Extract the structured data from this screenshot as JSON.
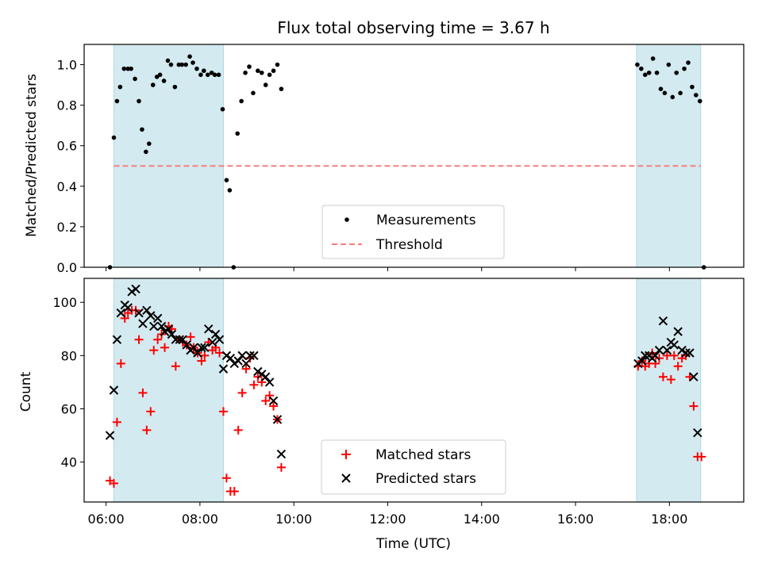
{
  "chart_data": [
    {
      "type": "scatter",
      "title": "Flux total observing time = 3.67 h",
      "xlabel": "",
      "ylabel": "Matched/Predicted stars",
      "xlim": [
        "05:32",
        "19:35"
      ],
      "ylim": [
        0,
        1.1
      ],
      "yticks": [
        "0.0",
        "0.2",
        "0.4",
        "0.6",
        "0.8",
        "1.0"
      ],
      "shaded_intervals": [
        [
          "06:10",
          "08:30"
        ],
        [
          "17:18",
          "18:40"
        ]
      ],
      "threshold": {
        "name": "Threshold",
        "value": 0.5,
        "x": [
          "06:10",
          "18:40"
        ],
        "color": "#f77f7f",
        "style": "dashed"
      },
      "series": [
        {
          "name": "Measurements",
          "color": "#000000",
          "marker": "dot",
          "points": [
            [
              "06:05",
              0.0
            ],
            [
              "06:10",
              0.64
            ],
            [
              "06:14",
              0.82
            ],
            [
              "06:18",
              0.89
            ],
            [
              "06:23",
              0.98
            ],
            [
              "06:28",
              0.98
            ],
            [
              "06:32",
              0.98
            ],
            [
              "06:37",
              0.93
            ],
            [
              "06:42",
              0.82
            ],
            [
              "06:46",
              0.68
            ],
            [
              "06:51",
              0.57
            ],
            [
              "06:55",
              0.61
            ],
            [
              "07:00",
              0.9
            ],
            [
              "07:05",
              0.94
            ],
            [
              "07:09",
              0.95
            ],
            [
              "07:14",
              0.92
            ],
            [
              "07:19",
              1.02
            ],
            [
              "07:23",
              1.0
            ],
            [
              "07:28",
              0.89
            ],
            [
              "07:33",
              1.0
            ],
            [
              "07:37",
              1.0
            ],
            [
              "07:42",
              1.0
            ],
            [
              "07:47",
              1.04
            ],
            [
              "07:51",
              1.01
            ],
            [
              "07:56",
              0.98
            ],
            [
              "08:01",
              0.95
            ],
            [
              "08:05",
              0.97
            ],
            [
              "08:10",
              0.95
            ],
            [
              "08:15",
              0.96
            ],
            [
              "08:19",
              0.95
            ],
            [
              "08:24",
              0.95
            ],
            [
              "08:29",
              0.78
            ],
            [
              "08:34",
              0.43
            ],
            [
              "08:38",
              0.38
            ],
            [
              "08:43",
              0.0
            ],
            [
              "08:48",
              0.66
            ],
            [
              "08:53",
              0.82
            ],
            [
              "08:58",
              0.96
            ],
            [
              "09:03",
              0.99
            ],
            [
              "09:08",
              0.86
            ],
            [
              "09:14",
              0.97
            ],
            [
              "09:19",
              0.96
            ],
            [
              "09:24",
              0.9
            ],
            [
              "09:29",
              0.95
            ],
            [
              "09:34",
              0.97
            ],
            [
              "09:39",
              1.0
            ],
            [
              "09:44",
              0.88
            ],
            [
              "17:19",
              1.0
            ],
            [
              "17:24",
              0.98
            ],
            [
              "17:29",
              0.95
            ],
            [
              "17:34",
              0.96
            ],
            [
              "17:39",
              1.03
            ],
            [
              "17:44",
              0.96
            ],
            [
              "17:49",
              0.88
            ],
            [
              "17:54",
              0.86
            ],
            [
              "17:59",
              1.0
            ],
            [
              "18:04",
              0.84
            ],
            [
              "18:09",
              0.96
            ],
            [
              "18:14",
              0.86
            ],
            [
              "18:19",
              0.98
            ],
            [
              "18:24",
              1.01
            ],
            [
              "18:29",
              0.89
            ],
            [
              "18:34",
              0.85
            ],
            [
              "18:39",
              0.82
            ],
            [
              "18:44",
              0.0
            ]
          ]
        }
      ],
      "legend": {
        "placement": "bottom-center"
      }
    },
    {
      "type": "scatter",
      "xlabel": "Time (UTC)",
      "ylabel": "Count",
      "xlim": [
        "05:32",
        "19:35"
      ],
      "ylim": [
        25,
        109
      ],
      "xticks": [
        "06:00",
        "08:00",
        "10:00",
        "12:00",
        "14:00",
        "16:00",
        "18:00"
      ],
      "yticks": [
        "40",
        "60",
        "80",
        "100"
      ],
      "shaded_intervals": [
        [
          "06:10",
          "08:30"
        ],
        [
          "17:18",
          "18:40"
        ]
      ],
      "series": [
        {
          "name": "Matched stars",
          "color": "#ff0000",
          "marker": "plus",
          "points": [
            [
              "06:05",
              33
            ],
            [
              "06:10",
              32
            ],
            [
              "06:14",
              55
            ],
            [
              "06:19",
              77
            ],
            [
              "06:24",
              94
            ],
            [
              "06:28",
              96
            ],
            [
              "06:33",
              97
            ],
            [
              "06:38",
              97
            ],
            [
              "06:42",
              86
            ],
            [
              "06:47",
              66
            ],
            [
              "06:52",
              52
            ],
            [
              "06:57",
              59
            ],
            [
              "07:01",
              82
            ],
            [
              "07:06",
              86
            ],
            [
              "07:11",
              88
            ],
            [
              "07:15",
              83
            ],
            [
              "07:20",
              91
            ],
            [
              "07:24",
              90
            ],
            [
              "07:29",
              76
            ],
            [
              "07:34",
              86
            ],
            [
              "07:38",
              85
            ],
            [
              "07:43",
              84
            ],
            [
              "07:48",
              87
            ],
            [
              "07:52",
              83
            ],
            [
              "07:57",
              81
            ],
            [
              "08:02",
              78
            ],
            [
              "08:06",
              80
            ],
            [
              "08:11",
              85
            ],
            [
              "08:16",
              82
            ],
            [
              "08:20",
              83
            ],
            [
              "08:25",
              81
            ],
            [
              "08:30",
              59
            ],
            [
              "08:34",
              34
            ],
            [
              "08:39",
              29
            ],
            [
              "08:44",
              29
            ],
            [
              "08:49",
              52
            ],
            [
              "08:54",
              66
            ],
            [
              "08:59",
              75
            ],
            [
              "09:04",
              79
            ],
            [
              "09:09",
              69
            ],
            [
              "09:14",
              72
            ],
            [
              "09:19",
              70
            ],
            [
              "09:24",
              63
            ],
            [
              "09:29",
              65
            ],
            [
              "09:34",
              61
            ],
            [
              "09:39",
              56
            ],
            [
              "09:44",
              38
            ],
            [
              "17:20",
              76
            ],
            [
              "17:25",
              78
            ],
            [
              "17:29",
              76
            ],
            [
              "17:34",
              77
            ],
            [
              "17:38",
              81
            ],
            [
              "17:42",
              77
            ],
            [
              "17:47",
              79
            ],
            [
              "17:52",
              72
            ],
            [
              "17:57",
              80
            ],
            [
              "18:02",
              71
            ],
            [
              "18:06",
              80
            ],
            [
              "18:11",
              76
            ],
            [
              "18:16",
              79
            ],
            [
              "18:21",
              80
            ],
            [
              "18:26",
              72
            ],
            [
              "18:31",
              61
            ],
            [
              "18:36",
              42
            ],
            [
              "18:41",
              42
            ]
          ]
        },
        {
          "name": "Predicted stars",
          "color": "#000000",
          "marker": "x",
          "points": [
            [
              "06:05",
              50
            ],
            [
              "06:10",
              67
            ],
            [
              "06:14",
              86
            ],
            [
              "06:19",
              96
            ],
            [
              "06:24",
              99
            ],
            [
              "06:28",
              98
            ],
            [
              "06:33",
              104
            ],
            [
              "06:38",
              105
            ],
            [
              "06:42",
              96
            ],
            [
              "06:47",
              92
            ],
            [
              "06:52",
              97
            ],
            [
              "06:57",
              95
            ],
            [
              "07:01",
              91
            ],
            [
              "07:06",
              94
            ],
            [
              "07:11",
              91
            ],
            [
              "07:15",
              89
            ],
            [
              "07:20",
              90
            ],
            [
              "07:24",
              88
            ],
            [
              "07:29",
              86
            ],
            [
              "07:34",
              86
            ],
            [
              "07:38",
              86
            ],
            [
              "07:43",
              84
            ],
            [
              "07:48",
              82
            ],
            [
              "07:52",
              83
            ],
            [
              "07:57",
              81
            ],
            [
              "08:02",
              83
            ],
            [
              "08:06",
              83
            ],
            [
              "08:11",
              90
            ],
            [
              "08:16",
              85
            ],
            [
              "08:20",
              88
            ],
            [
              "08:25",
              86
            ],
            [
              "08:30",
              75
            ],
            [
              "08:34",
              80
            ],
            [
              "08:39",
              79
            ],
            [
              "08:44",
              77
            ],
            [
              "08:49",
              78
            ],
            [
              "08:54",
              80
            ],
            [
              "08:59",
              77
            ],
            [
              "09:04",
              80
            ],
            [
              "09:09",
              80
            ],
            [
              "09:14",
              74
            ],
            [
              "09:19",
              73
            ],
            [
              "09:24",
              72
            ],
            [
              "09:29",
              70
            ],
            [
              "09:34",
              63
            ],
            [
              "09:39",
              56
            ],
            [
              "09:44",
              43
            ],
            [
              "17:20",
              77
            ],
            [
              "17:25",
              78
            ],
            [
              "17:29",
              80
            ],
            [
              "17:34",
              80
            ],
            [
              "17:38",
              79
            ],
            [
              "17:42",
              80
            ],
            [
              "17:47",
              82
            ],
            [
              "17:52",
              93
            ],
            [
              "17:57",
              82
            ],
            [
              "18:02",
              85
            ],
            [
              "18:06",
              84
            ],
            [
              "18:11",
              89
            ],
            [
              "18:16",
              82
            ],
            [
              "18:21",
              81
            ],
            [
              "18:26",
              81
            ],
            [
              "18:31",
              72
            ],
            [
              "18:36",
              51
            ]
          ]
        }
      ],
      "legend": {
        "placement": "bottom-center"
      }
    }
  ],
  "colors": {
    "shade": "#d3eaf0",
    "shade_edge": "#add8e6"
  }
}
